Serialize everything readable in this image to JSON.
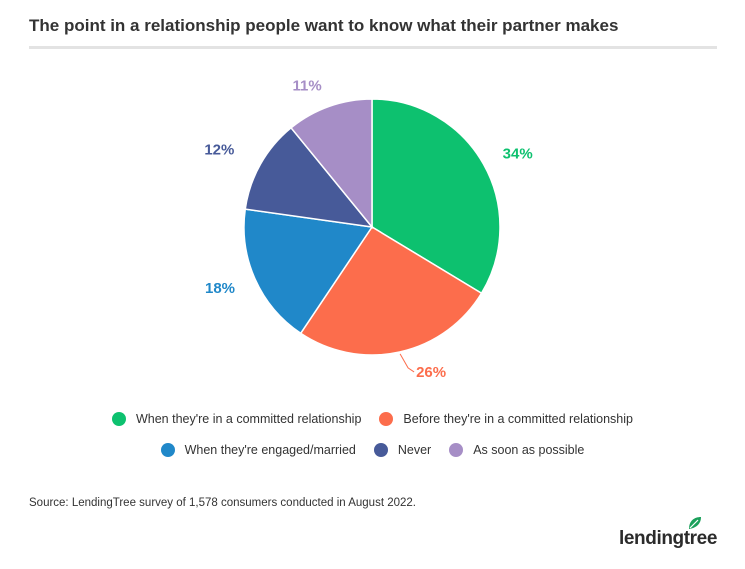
{
  "title": "The point in a relationship people want to know what their partner makes",
  "source": "Source: LendingTree survey of 1,578 consumers conducted in August 2022.",
  "logo_text": "lendingtree",
  "colors": {
    "committed": "#0dc16f",
    "before_committed": "#fc6d4c",
    "engaged_married": "#2088c9",
    "never": "#475a99",
    "asap": "#a68ec6",
    "leaf": "#1aa05a"
  },
  "chart_data": {
    "type": "pie",
    "title": "The point in a relationship people want to know what their partner makes",
    "slices": [
      {
        "label": "When they're in a committed relationship",
        "value": 34,
        "display": "34%",
        "color": "#0dc16f"
      },
      {
        "label": "Before they're in a committed relationship",
        "value": 26,
        "display": "26%",
        "color": "#fc6d4c"
      },
      {
        "label": "When they're engaged/married",
        "value": 18,
        "display": "18%",
        "color": "#2088c9"
      },
      {
        "label": "Never",
        "value": 12,
        "display": "12%",
        "color": "#475a99"
      },
      {
        "label": "As soon as possible",
        "value": 11,
        "display": "11%",
        "color": "#a68ec6"
      }
    ],
    "legend_position": "bottom"
  },
  "legend": {
    "row1": [
      {
        "label": "When they're in a committed relationship",
        "color": "#0dc16f"
      },
      {
        "label": "Before they're in a committed relationship",
        "color": "#fc6d4c"
      }
    ],
    "row2": [
      {
        "label": "When they're engaged/married",
        "color": "#2088c9"
      },
      {
        "label": "Never",
        "color": "#475a99"
      },
      {
        "label": "As soon as possible",
        "color": "#a68ec6"
      }
    ]
  }
}
